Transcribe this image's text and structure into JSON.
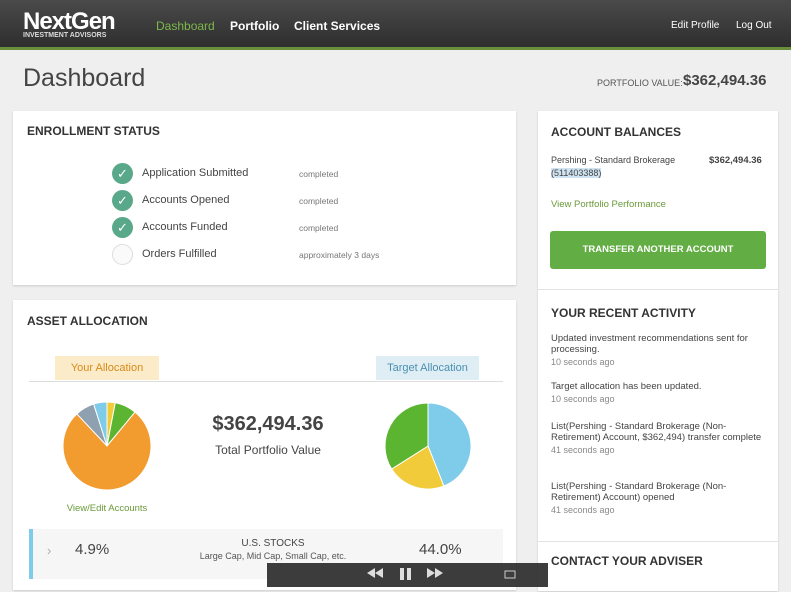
{
  "header": {
    "logo": "NextGen",
    "logo_sub": "INVESTMENT ADVISORS",
    "nav": [
      "Dashboard",
      "Portfolio",
      "Client Services"
    ],
    "user_links": [
      "Edit Profile",
      "Log Out"
    ]
  },
  "page": {
    "title": "Dashboard",
    "portfolio_value_label": "PORTFOLIO VALUE:",
    "portfolio_value": "$362,494.36"
  },
  "enrollment": {
    "title": "ENROLLMENT STATUS",
    "steps": [
      {
        "label": "Application Submitted",
        "status": "completed",
        "done": true
      },
      {
        "label": "Accounts Opened",
        "status": "completed",
        "done": true
      },
      {
        "label": "Accounts Funded",
        "status": "completed",
        "done": true
      },
      {
        "label": "Orders Fulfilled",
        "status": "approximately 3 days",
        "done": false
      }
    ]
  },
  "asset_allocation": {
    "title": "ASSET ALLOCATION",
    "your_label": "Your Allocation",
    "target_label": "Target Allocation",
    "total_value": "$362,494.36",
    "total_label": "Total Portfolio Value",
    "link": "View/Edit Accounts",
    "your_pie": {
      "type": "pie",
      "values": [
        3,
        8,
        77,
        7.1,
        4.9
      ],
      "colors": [
        "#f2cb3a",
        "#5cb531",
        "#f29b2e",
        "#8fa0b0",
        "#7ecbea"
      ]
    },
    "target_pie": {
      "type": "pie",
      "values": [
        44,
        22,
        34
      ],
      "colors": [
        "#7ecbea",
        "#f2cb3a",
        "#5cb531"
      ]
    },
    "rows": [
      {
        "your": "4.9%",
        "name": "U.S. STOCKS",
        "desc": "Large Cap, Mid Cap, Small Cap, etc.",
        "target": "44.0%"
      }
    ]
  },
  "balances": {
    "title": "ACCOUNT BALANCES",
    "account_name": "Pershing - Standard Brokerage",
    "account_number": "(511403388)",
    "amount": "$362,494.36",
    "link": "View Portfolio Performance",
    "button": "TRANSFER ANOTHER ACCOUNT"
  },
  "activity": {
    "title": "YOUR RECENT ACTIVITY",
    "items": [
      {
        "text": "Updated investment recommendations sent for processing.",
        "time": "10 seconds ago"
      },
      {
        "text": "Target allocation has been updated.",
        "time": "10 seconds ago"
      },
      {
        "text": "List(Pershing - Standard Brokerage (Non-Retirement) Account, $362,494) transfer complete",
        "time": "41 seconds ago"
      },
      {
        "text": "List(Pershing - Standard Brokerage (Non-Retirement) Account) opened",
        "time": "41 seconds ago"
      }
    ]
  },
  "contact": {
    "title": "CONTACT YOUR ADVISER"
  }
}
